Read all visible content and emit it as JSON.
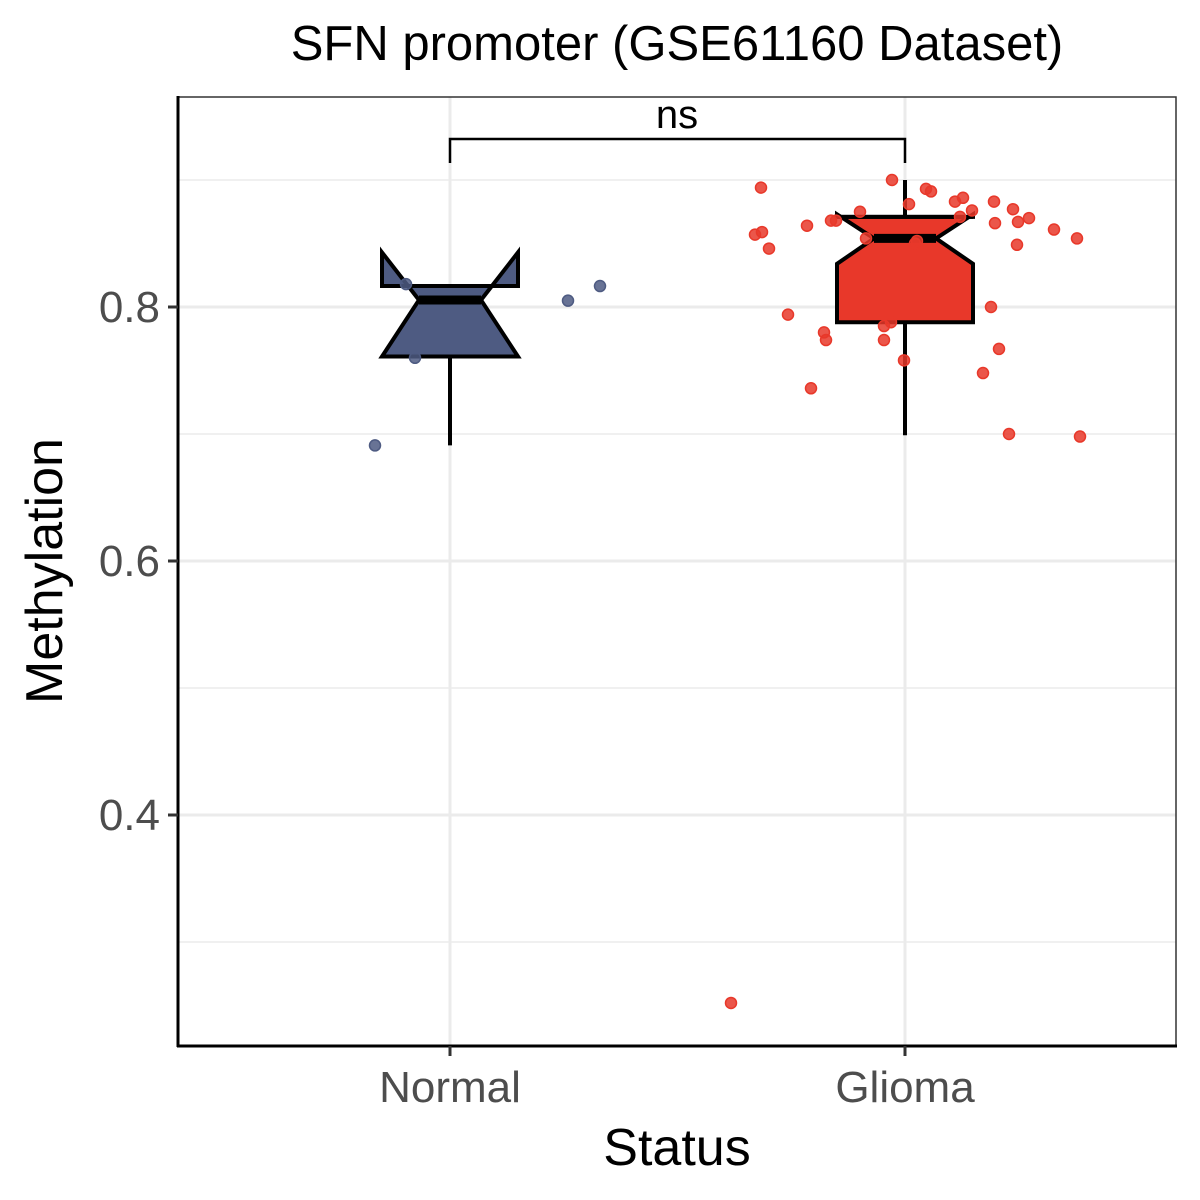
{
  "chart_data": {
    "type": "boxplot",
    "title": "SFN promoter (GSE61160 Dataset)",
    "xlabel": "Status",
    "ylabel": "Methylation",
    "categories": [
      "Normal",
      "Glioma"
    ],
    "ylim": [
      0.23,
      0.97
    ],
    "yticks": [
      0.4,
      0.6,
      0.8
    ],
    "ytick_labels": [
      "0.4",
      "0.6",
      "0.8"
    ],
    "grid": true,
    "notched": true,
    "colors": {
      "Normal": "#4E5B82",
      "Glioma": "#E8382A"
    },
    "boxes": [
      {
        "category": "Normal",
        "whisker_low": 0.691,
        "q1": 0.761,
        "median": 0.8055,
        "q3": 0.8165,
        "whisker_high": 0.8165,
        "notch_low": 0.761,
        "notch_high": 0.843
      },
      {
        "category": "Glioma",
        "whisker_low": 0.699,
        "q1": 0.788,
        "median": 0.854,
        "q3": 0.871,
        "whisker_high": 0.9,
        "notch_low": 0.834,
        "notch_high": 0.873
      }
    ],
    "points": {
      "Normal": [
        0.818,
        0.76,
        0.691,
        0.805,
        0.8165
      ],
      "Glioma": [
        0.894,
        0.9,
        0.893,
        0.891,
        0.881,
        0.886,
        0.883,
        0.883,
        0.877,
        0.876,
        0.871,
        0.87,
        0.867,
        0.866,
        0.868,
        0.875,
        0.864,
        0.868,
        0.861,
        0.854,
        0.857,
        0.859,
        0.846,
        0.849,
        0.854,
        0.85,
        0.852,
        0.794,
        0.8,
        0.78,
        0.774,
        0.785,
        0.788,
        0.774,
        0.758,
        0.767,
        0.748,
        0.736,
        0.7,
        0.698,
        0.252
      ]
    },
    "comparison": {
      "groups": [
        "Normal",
        "Glioma"
      ],
      "label": "ns"
    }
  }
}
